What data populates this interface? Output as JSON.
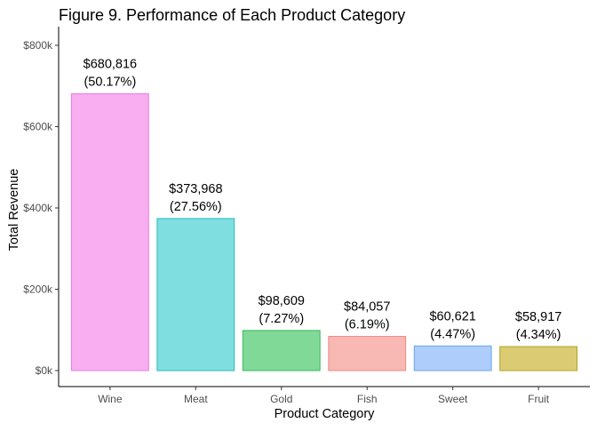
{
  "chart_data": {
    "type": "bar",
    "title": "Figure 9. Performance of Each Product Category",
    "xlabel": "Product Category",
    "ylabel": "Total Revenue",
    "categories": [
      "Wine",
      "Meat",
      "Gold",
      "Fish",
      "Sweet",
      "Fruit"
    ],
    "values": [
      680816,
      373968,
      98609,
      84057,
      60621,
      58917
    ],
    "value_labels": [
      "$680,816",
      "$373,968",
      "$98,609",
      "$84,057",
      "$60,621",
      "$58,917"
    ],
    "percent_labels": [
      "(50.17%)",
      "(27.56%)",
      "(7.27%)",
      "(6.19%)",
      "(4.47%)",
      "(4.34%)"
    ],
    "colors": [
      "#f8aef0",
      "#7fdfe0",
      "#80d997",
      "#f8b8b3",
      "#aecdfb",
      "#dbcb73"
    ],
    "border_colors": [
      "#e87ee0",
      "#27b8bd",
      "#34b85d",
      "#ee8a85",
      "#6ba4ec",
      "#b3a320"
    ],
    "yticks": [
      0,
      200000,
      400000,
      600000,
      800000
    ],
    "ytick_labels": [
      "$0k",
      "$200k",
      "$400k",
      "$600k",
      "$800k"
    ],
    "ylim": [
      0,
      800000
    ],
    "grid": false,
    "legend": "none"
  }
}
